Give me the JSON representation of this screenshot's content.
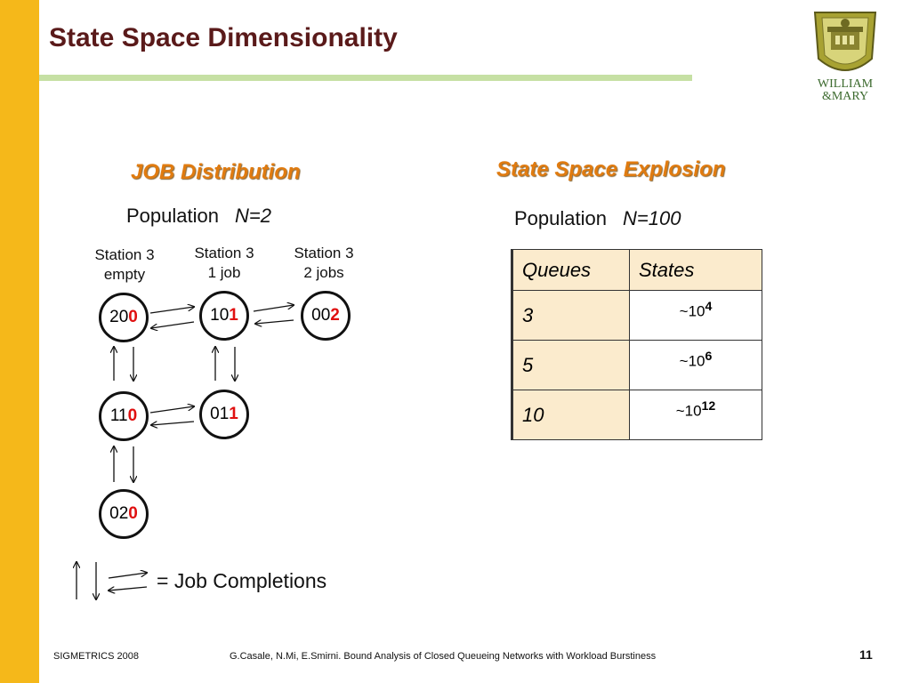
{
  "slide": {
    "title": "State Space Dimensionality",
    "logo_line1": "WILLIAM",
    "logo_line2": "&MARY"
  },
  "left_section": {
    "heading": "JOB Distribution",
    "population_label": "Population",
    "population_value": "N=2",
    "station_labels": [
      {
        "line1": "Station 3",
        "line2": "empty"
      },
      {
        "line1": "Station 3",
        "line2": "1 job"
      },
      {
        "line1": "Station 3",
        "line2": "2 jobs"
      }
    ],
    "states": [
      {
        "prefix": "20",
        "highlight": "0"
      },
      {
        "prefix": "10",
        "highlight": "1"
      },
      {
        "prefix": "00",
        "highlight": "2"
      },
      {
        "prefix": "11",
        "highlight": "0"
      },
      {
        "prefix": "01",
        "highlight": "1"
      },
      {
        "prefix": "02",
        "highlight": "0"
      }
    ],
    "legend_text": "= Job Completions"
  },
  "right_section": {
    "heading": "State Space Explosion",
    "population_label": "Population",
    "population_value": "N=100",
    "table": {
      "headers": [
        "Queues",
        "States"
      ],
      "rows": [
        {
          "queues": "3",
          "states_base": "~10",
          "states_exp": "4"
        },
        {
          "queues": "5",
          "states_base": "~10",
          "states_exp": "6"
        },
        {
          "queues": "10",
          "states_base": "~10",
          "states_exp": "12"
        }
      ]
    }
  },
  "footer": {
    "conference": "SIGMETRICS 2008",
    "citation": "G.Casale, N.Mi, E.Smirni. Bound Analysis of Closed Queueing Networks with Workload Burstiness",
    "page_number": "11"
  }
}
